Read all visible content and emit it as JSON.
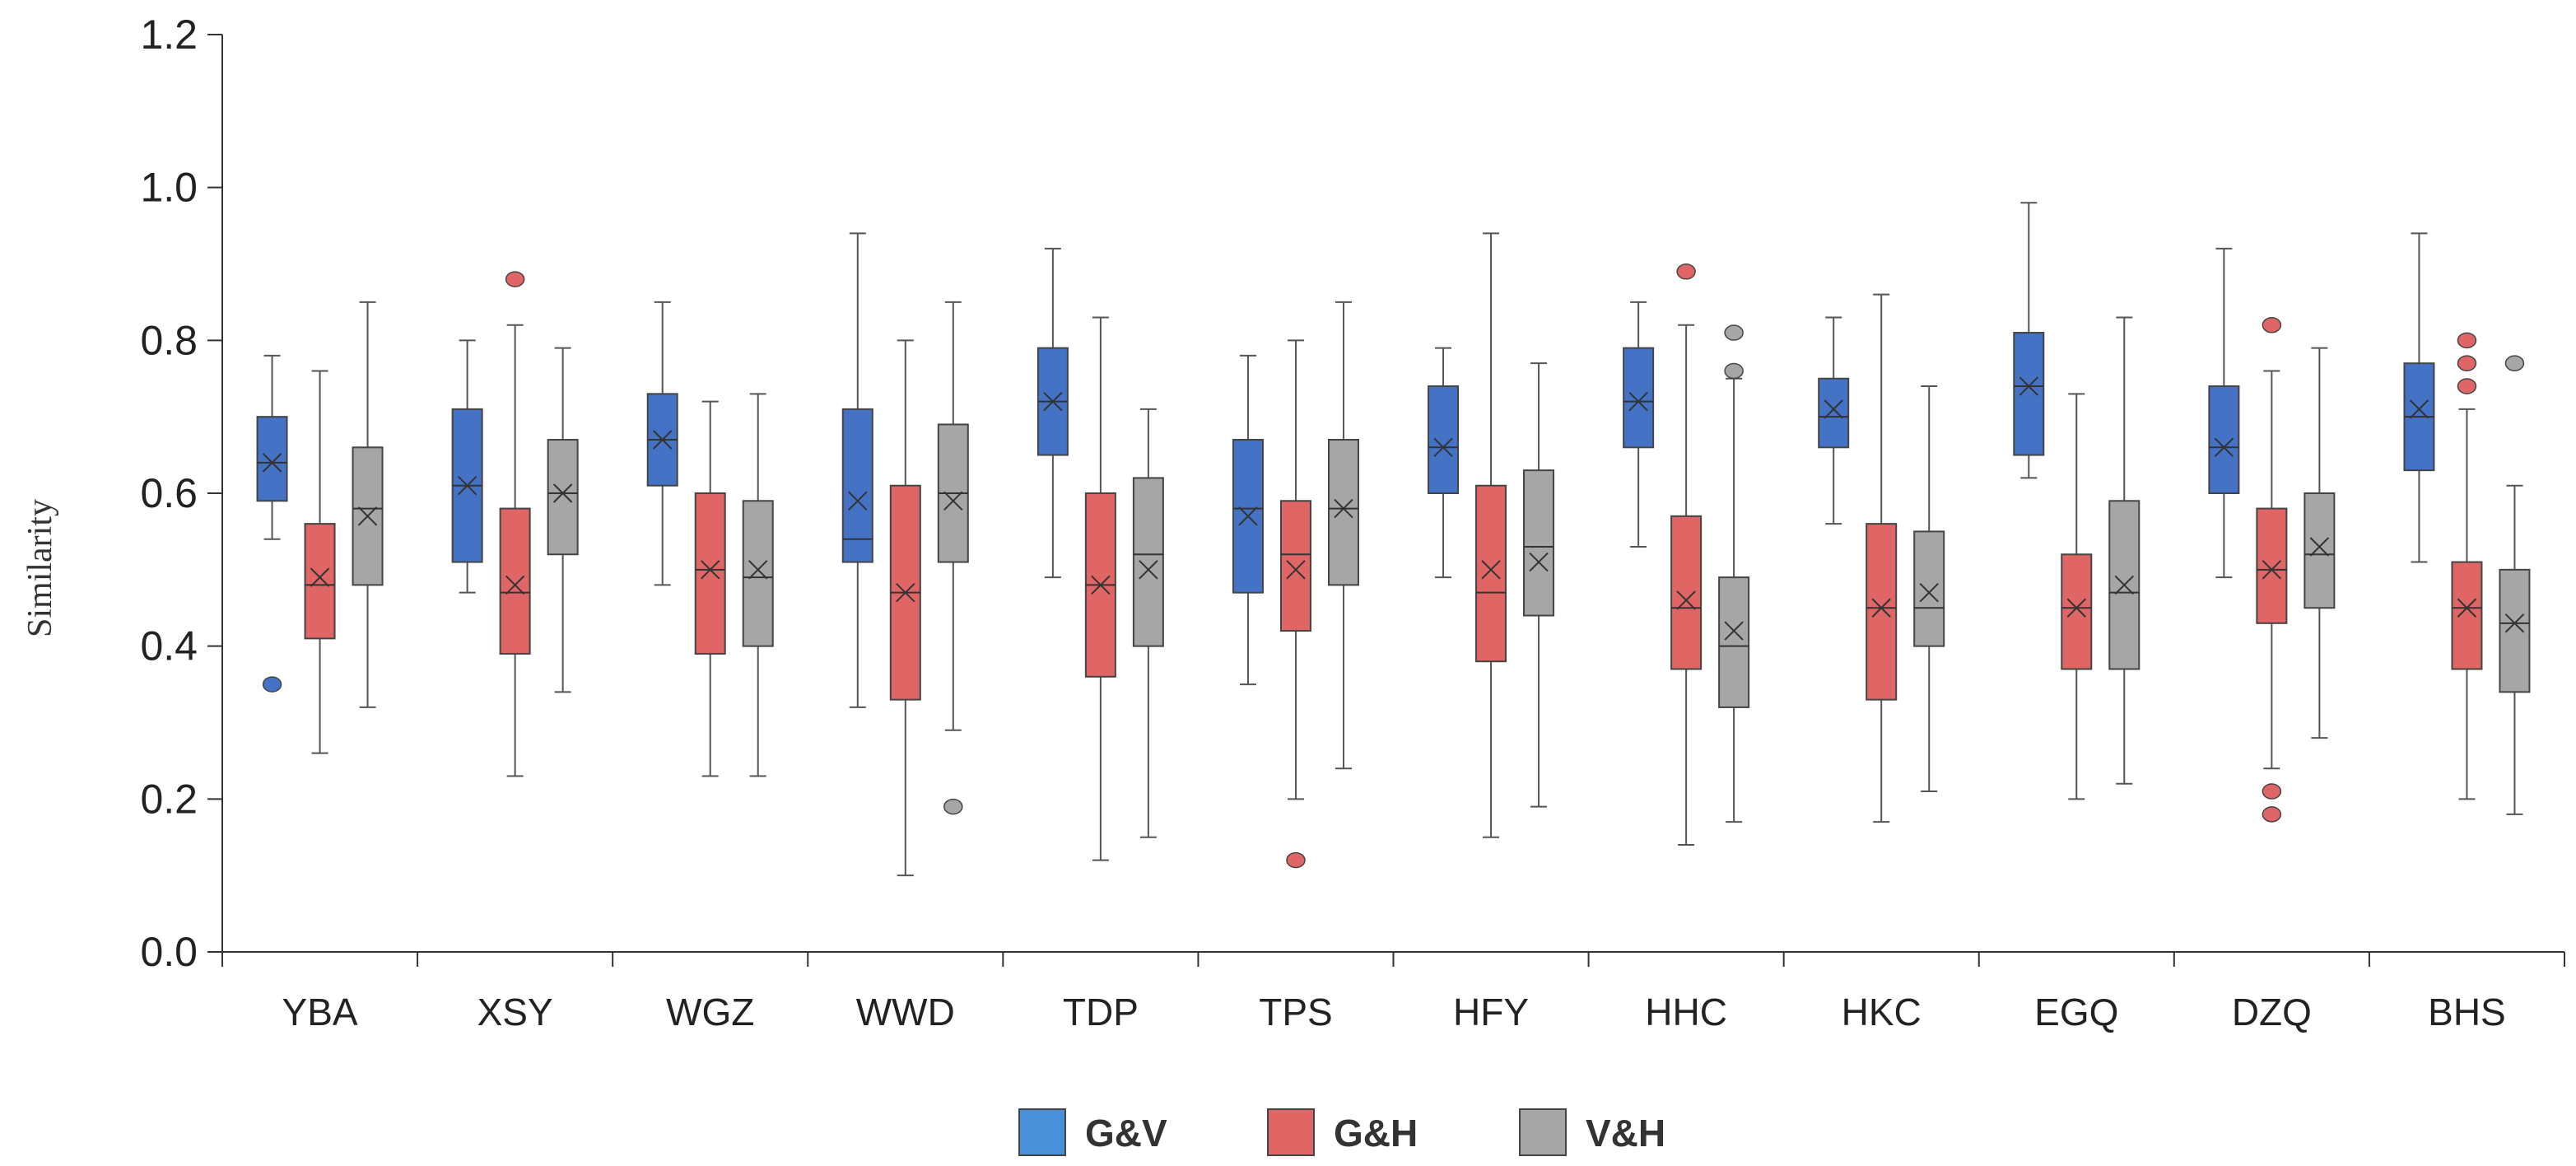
{
  "chart_data": {
    "type": "boxplot",
    "title": "",
    "xlabel": "",
    "ylabel": "Similarity",
    "ylim": [
      0,
      1.2
    ],
    "yticks": [
      "0.0",
      "0.2",
      "0.4",
      "0.6",
      "0.8",
      "1.0",
      "1.2"
    ],
    "categories": [
      "YBA",
      "XSY",
      "WGZ",
      "WWD",
      "TDP",
      "TPS",
      "HFY",
      "HHC",
      "HKC",
      "EGQ",
      "DZQ",
      "BHS"
    ],
    "legend_position": "bottom-center",
    "series": [
      {
        "name": "G&V",
        "color": "#4472C4",
        "legend_color": "#4A90D9",
        "boxes": [
          {
            "min": 0.54,
            "q1": 0.59,
            "median": 0.64,
            "mean": 0.64,
            "q3": 0.7,
            "max": 0.78,
            "outliers": [
              0.35
            ]
          },
          {
            "min": 0.47,
            "q1": 0.51,
            "median": 0.61,
            "mean": 0.61,
            "q3": 0.71,
            "max": 0.8,
            "outliers": []
          },
          {
            "min": 0.48,
            "q1": 0.61,
            "median": 0.67,
            "mean": 0.67,
            "q3": 0.73,
            "max": 0.85,
            "outliers": []
          },
          {
            "min": 0.32,
            "q1": 0.51,
            "median": 0.54,
            "mean": 0.59,
            "q3": 0.71,
            "max": 0.94,
            "outliers": []
          },
          {
            "min": 0.49,
            "q1": 0.65,
            "median": 0.72,
            "mean": 0.72,
            "q3": 0.79,
            "max": 0.92,
            "outliers": []
          },
          {
            "min": 0.35,
            "q1": 0.47,
            "median": 0.58,
            "mean": 0.57,
            "q3": 0.67,
            "max": 0.78,
            "outliers": []
          },
          {
            "min": 0.49,
            "q1": 0.6,
            "median": 0.66,
            "mean": 0.66,
            "q3": 0.74,
            "max": 0.79,
            "outliers": []
          },
          {
            "min": 0.53,
            "q1": 0.66,
            "median": 0.72,
            "mean": 0.72,
            "q3": 0.79,
            "max": 0.85,
            "outliers": []
          },
          {
            "min": 0.56,
            "q1": 0.66,
            "median": 0.7,
            "mean": 0.71,
            "q3": 0.75,
            "max": 0.83,
            "outliers": []
          },
          {
            "min": 0.62,
            "q1": 0.65,
            "median": 0.74,
            "mean": 0.74,
            "q3": 0.81,
            "max": 0.98,
            "outliers": []
          },
          {
            "min": 0.49,
            "q1": 0.6,
            "median": 0.66,
            "mean": 0.66,
            "q3": 0.74,
            "max": 0.92,
            "outliers": []
          },
          {
            "min": 0.51,
            "q1": 0.63,
            "median": 0.7,
            "mean": 0.71,
            "q3": 0.77,
            "max": 0.94,
            "outliers": []
          }
        ]
      },
      {
        "name": "G&H",
        "color": "#E06666",
        "legend_color": "#E06666",
        "boxes": [
          {
            "min": 0.26,
            "q1": 0.41,
            "median": 0.48,
            "mean": 0.49,
            "q3": 0.56,
            "max": 0.76,
            "outliers": []
          },
          {
            "min": 0.23,
            "q1": 0.39,
            "median": 0.47,
            "mean": 0.48,
            "q3": 0.58,
            "max": 0.82,
            "outliers": [
              0.88
            ]
          },
          {
            "min": 0.23,
            "q1": 0.39,
            "median": 0.5,
            "mean": 0.5,
            "q3": 0.6,
            "max": 0.72,
            "outliers": []
          },
          {
            "min": 0.1,
            "q1": 0.33,
            "median": 0.47,
            "mean": 0.47,
            "q3": 0.61,
            "max": 0.8,
            "outliers": []
          },
          {
            "min": 0.12,
            "q1": 0.36,
            "median": 0.48,
            "mean": 0.48,
            "q3": 0.6,
            "max": 0.83,
            "outliers": []
          },
          {
            "min": 0.2,
            "q1": 0.42,
            "median": 0.52,
            "mean": 0.5,
            "q3": 0.59,
            "max": 0.8,
            "outliers": [
              0.12
            ]
          },
          {
            "min": 0.15,
            "q1": 0.38,
            "median": 0.47,
            "mean": 0.5,
            "q3": 0.61,
            "max": 0.94,
            "outliers": []
          },
          {
            "min": 0.14,
            "q1": 0.37,
            "median": 0.45,
            "mean": 0.46,
            "q3": 0.57,
            "max": 0.82,
            "outliers": [
              0.89
            ]
          },
          {
            "min": 0.17,
            "q1": 0.33,
            "median": 0.45,
            "mean": 0.45,
            "q3": 0.56,
            "max": 0.86,
            "outliers": []
          },
          {
            "min": 0.2,
            "q1": 0.37,
            "median": 0.45,
            "mean": 0.45,
            "q3": 0.52,
            "max": 0.73,
            "outliers": []
          },
          {
            "min": 0.24,
            "q1": 0.43,
            "median": 0.5,
            "mean": 0.5,
            "q3": 0.58,
            "max": 0.76,
            "outliers": [
              0.82,
              0.21,
              0.18
            ]
          },
          {
            "min": 0.2,
            "q1": 0.37,
            "median": 0.45,
            "mean": 0.45,
            "q3": 0.51,
            "max": 0.71,
            "outliers": [
              0.8,
              0.77,
              0.74
            ]
          }
        ]
      },
      {
        "name": "V&H",
        "color": "#A6A6A6",
        "legend_color": "#A6A6A6",
        "boxes": [
          {
            "min": 0.32,
            "q1": 0.48,
            "median": 0.58,
            "mean": 0.57,
            "q3": 0.66,
            "max": 0.85,
            "outliers": []
          },
          {
            "min": 0.34,
            "q1": 0.52,
            "median": 0.6,
            "mean": 0.6,
            "q3": 0.67,
            "max": 0.79,
            "outliers": []
          },
          {
            "min": 0.23,
            "q1": 0.4,
            "median": 0.49,
            "mean": 0.5,
            "q3": 0.59,
            "max": 0.73,
            "outliers": []
          },
          {
            "min": 0.29,
            "q1": 0.51,
            "median": 0.6,
            "mean": 0.59,
            "q3": 0.69,
            "max": 0.85,
            "outliers": [
              0.19
            ]
          },
          {
            "min": 0.15,
            "q1": 0.4,
            "median": 0.52,
            "mean": 0.5,
            "q3": 0.62,
            "max": 0.71,
            "outliers": []
          },
          {
            "min": 0.24,
            "q1": 0.48,
            "median": 0.58,
            "mean": 0.58,
            "q3": 0.67,
            "max": 0.85,
            "outliers": []
          },
          {
            "min": 0.19,
            "q1": 0.44,
            "median": 0.53,
            "mean": 0.51,
            "q3": 0.63,
            "max": 0.77,
            "outliers": []
          },
          {
            "min": 0.17,
            "q1": 0.32,
            "median": 0.4,
            "mean": 0.42,
            "q3": 0.49,
            "max": 0.75,
            "outliers": [
              0.81,
              0.76
            ]
          },
          {
            "min": 0.21,
            "q1": 0.4,
            "median": 0.45,
            "mean": 0.47,
            "q3": 0.55,
            "max": 0.74,
            "outliers": []
          },
          {
            "min": 0.22,
            "q1": 0.37,
            "median": 0.47,
            "mean": 0.48,
            "q3": 0.59,
            "max": 0.83,
            "outliers": []
          },
          {
            "min": 0.28,
            "q1": 0.45,
            "median": 0.52,
            "mean": 0.53,
            "q3": 0.6,
            "max": 0.79,
            "outliers": []
          },
          {
            "min": 0.18,
            "q1": 0.34,
            "median": 0.43,
            "mean": 0.43,
            "q3": 0.5,
            "max": 0.61,
            "outliers": [
              0.77
            ]
          }
        ]
      }
    ]
  }
}
